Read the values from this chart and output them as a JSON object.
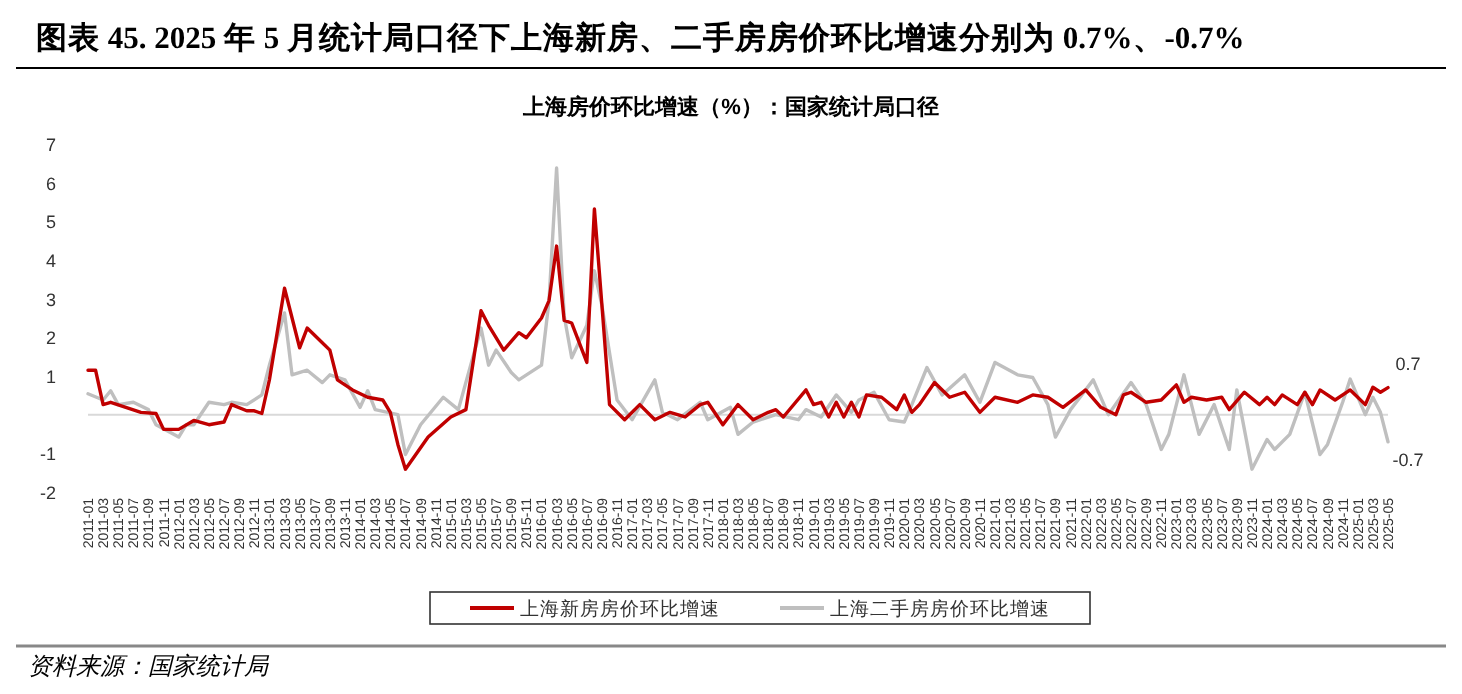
{
  "chart_data": {
    "type": "line",
    "title": "图表 45. 2025 年 5 月统计局口径下上海新房、二手房房价环比增速分别为 0.7%、-0.7%",
    "subtitle": "上海房价环比增速（%）：国家统计局口径",
    "annotations": [
      "资料来源：国家统计局",
      {
        "text": "0.7",
        "x": "2025-05",
        "y": 0.7
      },
      {
        "text": "-0.7",
        "x": "2025-05",
        "y": -0.7
      }
    ],
    "xlim": [
      "2011-01",
      "2025-05"
    ],
    "xticks": [
      "2011-01",
      "2011-03",
      "2011-05",
      "2011-07",
      "2011-09",
      "2011-11",
      "2012-01",
      "2012-03",
      "2012-05",
      "2012-07",
      "2012-09",
      "2012-11",
      "2013-01",
      "2013-03",
      "2013-05",
      "2013-07",
      "2013-09",
      "2013-11",
      "2014-01",
      "2014-03",
      "2014-05",
      "2014-07",
      "2014-09",
      "2014-11",
      "2015-01",
      "2015-03",
      "2015-05",
      "2015-07",
      "2015-09",
      "2015-11",
      "2016-01",
      "2016-03",
      "2016-05",
      "2016-07",
      "2016-09",
      "2016-11",
      "2017-01",
      "2017-03",
      "2017-05",
      "2017-07",
      "2017-09",
      "2017-11",
      "2018-01",
      "2018-03",
      "2018-05",
      "2018-07",
      "2018-09",
      "2018-11",
      "2019-01",
      "2019-03",
      "2019-05",
      "2019-07",
      "2019-09",
      "2019-11",
      "2020-01",
      "2020-03",
      "2020-05",
      "2020-07",
      "2020-09",
      "2020-11",
      "2021-01",
      "2021-03",
      "2021-05",
      "2021-07",
      "2021-09",
      "2021-11",
      "2022-01",
      "2022-03",
      "2022-05",
      "2022-07",
      "2022-09",
      "2022-11",
      "2023-01",
      "2023-03",
      "2023-05",
      "2023-07",
      "2023-09",
      "2023-11",
      "2024-01",
      "2024-03",
      "2024-05",
      "2024-07",
      "2024-09",
      "2024-11",
      "2025-01",
      "2025-03",
      "2025-05"
    ],
    "ylim": [
      -2,
      7
    ],
    "yticks": [
      -2,
      -1,
      1,
      2,
      3,
      4,
      5,
      6,
      7
    ],
    "grid": false,
    "legend": "bottom",
    "marker": "none",
    "line_style": "solid",
    "series": [
      {
        "name": "上海新房房价环比增速",
        "color": "#c00000",
        "x": [
          "2011-01",
          "2011-02",
          "2011-03",
          "2011-04",
          "2011-06",
          "2011-08",
          "2011-10",
          "2011-11",
          "2012-01",
          "2012-03",
          "2012-05",
          "2012-07",
          "2012-08",
          "2012-10",
          "2012-11",
          "2012-12",
          "2013-01",
          "2013-03",
          "2013-05",
          "2013-06",
          "2013-08",
          "2013-09",
          "2013-10",
          "2013-12",
          "2014-02",
          "2014-04",
          "2014-05",
          "2014-06",
          "2014-07",
          "2014-10",
          "2015-01",
          "2015-03",
          "2015-05",
          "2015-06",
          "2015-08",
          "2015-10",
          "2015-11",
          "2016-01",
          "2016-02",
          "2016-03",
          "2016-04",
          "2016-05",
          "2016-07",
          "2016-08",
          "2016-09",
          "2016-10",
          "2016-12",
          "2017-02",
          "2017-04",
          "2017-06",
          "2017-08",
          "2017-10",
          "2017-11",
          "2018-01",
          "2018-03",
          "2018-05",
          "2018-07",
          "2018-08",
          "2018-09",
          "2018-12",
          "2019-01",
          "2019-02",
          "2019-03",
          "2019-04",
          "2019-05",
          "2019-06",
          "2019-07",
          "2019-08",
          "2019-10",
          "2019-12",
          "2020-01",
          "2020-02",
          "2020-03",
          "2020-05",
          "2020-07",
          "2020-09",
          "2020-11",
          "2021-01",
          "2021-04",
          "2021-06",
          "2021-08",
          "2021-10",
          "2022-01",
          "2022-03",
          "2022-05",
          "2022-06",
          "2022-07",
          "2022-09",
          "2022-11",
          "2023-01",
          "2023-02",
          "2023-03",
          "2023-05",
          "2023-07",
          "2023-08",
          "2023-10",
          "2023-12",
          "2024-01",
          "2024-02",
          "2024-03",
          "2024-05",
          "2024-06",
          "2024-07",
          "2024-08",
          "2024-10",
          "2024-12",
          "2025-02",
          "2025-03",
          "2025-04",
          "2025-05"
        ],
        "values": [
          1.15,
          1.15,
          0.26,
          0.32,
          0.19,
          0.06,
          0.03,
          -0.38,
          -0.38,
          -0.15,
          -0.26,
          -0.19,
          0.26,
          0.1,
          0.1,
          0.03,
          0.9,
          3.27,
          1.73,
          2.24,
          1.86,
          1.67,
          0.9,
          0.64,
          0.45,
          0.38,
          0.06,
          -0.77,
          -1.41,
          -0.58,
          -0.06,
          0.13,
          2.69,
          2.31,
          1.67,
          2.12,
          1.99,
          2.5,
          2.95,
          4.36,
          2.44,
          2.37,
          1.35,
          5.32,
          2.82,
          0.26,
          -0.13,
          0.26,
          -0.13,
          0.06,
          -0.06,
          0.26,
          0.32,
          -0.26,
          0.26,
          -0.13,
          0.06,
          0.13,
          -0.06,
          0.64,
          0.26,
          0.32,
          -0.06,
          0.32,
          -0.06,
          0.32,
          -0.06,
          0.51,
          0.45,
          0.13,
          0.51,
          0.06,
          0.26,
          0.83,
          0.45,
          0.58,
          0.06,
          0.45,
          0.32,
          0.51,
          0.45,
          0.19,
          0.64,
          0.19,
          0,
          0.51,
          0.58,
          0.32,
          0.38,
          0.77,
          0.32,
          0.45,
          0.38,
          0.45,
          0.13,
          0.58,
          0.26,
          0.45,
          0.26,
          0.51,
          0.26,
          0.58,
          0.26,
          0.64,
          0.38,
          0.64,
          0.26,
          0.71,
          0.58,
          0.7
        ]
      },
      {
        "name": "上海二手房房价环比增速",
        "color": "#bfbfbf",
        "x": [
          "2011-01",
          "2011-03",
          "2011-04",
          "2011-05",
          "2011-07",
          "2011-09",
          "2011-10",
          "2012-01",
          "2012-02",
          "2012-03",
          "2012-05",
          "2012-07",
          "2012-08",
          "2012-10",
          "2012-12",
          "2013-01",
          "2013-03",
          "2013-04",
          "2013-06",
          "2013-08",
          "2013-09",
          "2013-11",
          "2014-01",
          "2014-02",
          "2014-03",
          "2014-06",
          "2014-07",
          "2014-09",
          "2014-12",
          "2015-02",
          "2015-05",
          "2015-06",
          "2015-07",
          "2015-09",
          "2015-10",
          "2016-01",
          "2016-02",
          "2016-03",
          "2016-04",
          "2016-05",
          "2016-07",
          "2016-08",
          "2016-09",
          "2016-11",
          "2017-01",
          "2017-04",
          "2017-05",
          "2017-07",
          "2017-10",
          "2017-11",
          "2018-02",
          "2018-03",
          "2018-05",
          "2018-08",
          "2018-11",
          "2018-12",
          "2019-02",
          "2019-04",
          "2019-06",
          "2019-07",
          "2019-09",
          "2019-11",
          "2020-01",
          "2020-02",
          "2020-04",
          "2020-06",
          "2020-09",
          "2020-11",
          "2021-01",
          "2021-04",
          "2021-06",
          "2021-08",
          "2021-09",
          "2021-11",
          "2022-02",
          "2022-04",
          "2022-07",
          "2022-09",
          "2022-11",
          "2022-12",
          "2023-02",
          "2023-04",
          "2023-06",
          "2023-08",
          "2023-09",
          "2023-11",
          "2024-01",
          "2024-02",
          "2024-04",
          "2024-06",
          "2024-08",
          "2024-09",
          "2024-11",
          "2024-12",
          "2025-02",
          "2025-03",
          "2025-04",
          "2025-05"
        ],
        "values": [
          0.54,
          0.38,
          0.62,
          0.26,
          0.32,
          0.13,
          -0.26,
          -0.58,
          -0.26,
          -0.26,
          0.32,
          0.26,
          0.32,
          0.26,
          0.51,
          1.28,
          2.63,
          1.03,
          1.15,
          0.83,
          1.03,
          0.9,
          0.19,
          0.62,
          0.13,
          0,
          -1.03,
          -0.26,
          0.45,
          0.13,
          2.24,
          1.28,
          1.67,
          1.09,
          0.9,
          1.28,
          2.95,
          6.38,
          2.56,
          1.47,
          2.31,
          3.72,
          2.82,
          0.38,
          -0.13,
          0.9,
          0.06,
          -0.13,
          0.32,
          -0.13,
          0.19,
          -0.51,
          -0.19,
          0,
          -0.13,
          0.13,
          -0.06,
          0.51,
          0.06,
          0.38,
          0.58,
          -0.13,
          -0.19,
          0.26,
          1.22,
          0.51,
          1.03,
          0.32,
          1.35,
          1.03,
          0.96,
          0.26,
          -0.58,
          0.13,
          0.9,
          0,
          0.83,
          0.26,
          -0.9,
          -0.51,
          1.03,
          -0.51,
          0.26,
          -0.9,
          0.64,
          -1.41,
          -0.64,
          -0.9,
          -0.51,
          0.58,
          -1.03,
          -0.77,
          0.32,
          0.92,
          0,
          0.45,
          0.06,
          -0.7
        ]
      }
    ]
  }
}
